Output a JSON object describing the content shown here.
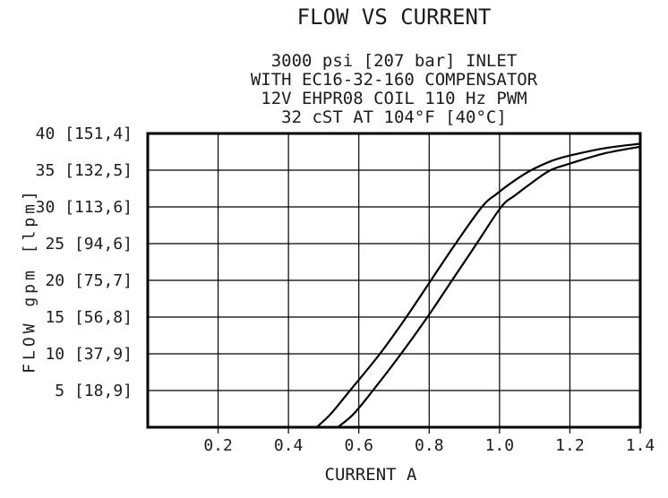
{
  "title": "FLOW VS CURRENT",
  "subtitle_lines": [
    "3000 psi [207 bar] INLET",
    "WITH EC16-32-160 COMPENSATOR",
    "12V EHPR08 COIL 110 Hz PWM",
    "32 cST AT 104°F [40°C]"
  ],
  "chart_data": {
    "type": "line",
    "title": "FLOW VS CURRENT",
    "xlabel": "CURRENT A",
    "ylabel": "FLOW gpm [lpm]",
    "xlim": [
      0,
      1.4
    ],
    "ylim": [
      0,
      40
    ],
    "grid": true,
    "legend_position": "none",
    "x_ticks": [
      0.2,
      0.4,
      0.6,
      0.8,
      1.0,
      1.2,
      1.4
    ],
    "x_tick_labels": [
      "0.2",
      "0.4",
      "0.6",
      "0.8",
      "1.0",
      "1.2",
      "1.4"
    ],
    "y_ticks": [
      5,
      10,
      15,
      20,
      25,
      30,
      35,
      40
    ],
    "y_tick_labels": [
      "5 [18,9]",
      "10 [37,9]",
      "15 [56,8]",
      "20 [75,7]",
      "25 [94,6]",
      "30 [113,6]",
      "35 [132,5]",
      "40 [151,4]"
    ],
    "series": [
      {
        "name": "flow-curve-left",
        "x": [
          0.48,
          0.52,
          0.575,
          0.66,
          0.735,
          0.805,
          0.875,
          0.95,
          0.99,
          1.04,
          1.09,
          1.15,
          1.2,
          1.3,
          1.4
        ],
        "y": [
          0,
          1.8,
          5,
          10,
          15,
          20,
          25,
          30,
          31.7,
          33.5,
          35,
          36.3,
          37.0,
          38.0,
          38.6
        ]
      },
      {
        "name": "flow-curve-right",
        "x": [
          0.54,
          0.585,
          0.64,
          0.72,
          0.795,
          0.865,
          0.935,
          1.005,
          1.045,
          1.095,
          1.145,
          1.2,
          1.3,
          1.4
        ],
        "y": [
          0,
          1.8,
          5,
          10,
          15,
          20,
          25,
          30,
          31.6,
          33.4,
          35,
          35.9,
          37.3,
          38.2
        ]
      }
    ]
  },
  "colors": {
    "background": "#ffffff",
    "text": "#1c1c1c",
    "grid": "#000000",
    "border": "#000000",
    "curve": "#000000"
  }
}
